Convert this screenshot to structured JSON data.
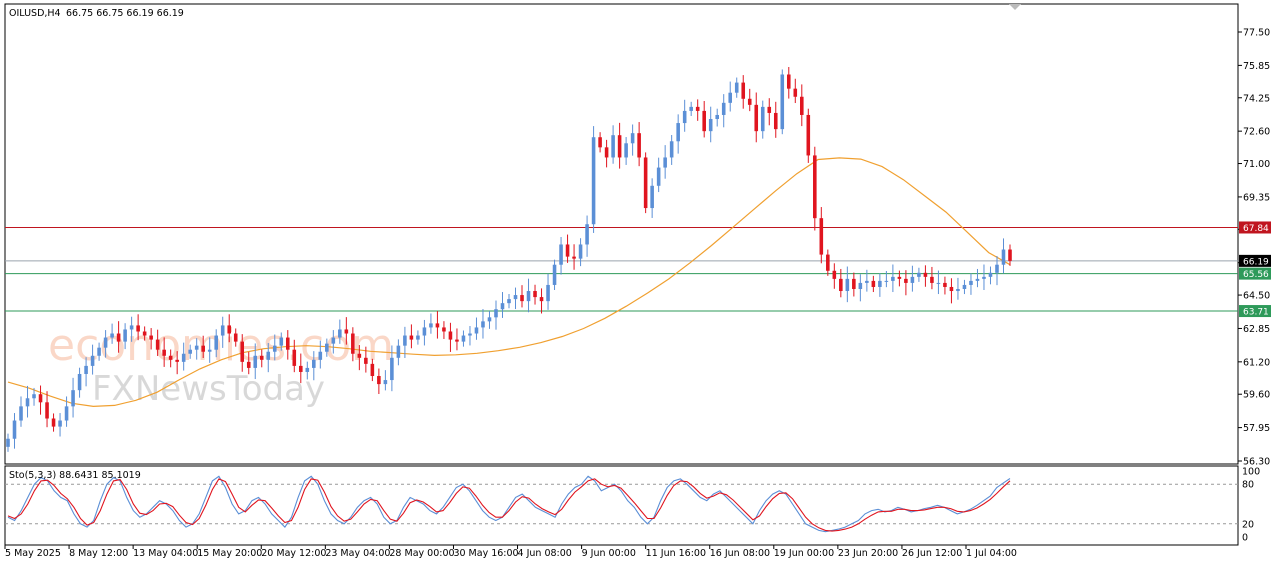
{
  "header": {
    "symbol": "OILUSD,H4",
    "ohlc": "66.75 66.75 66.19 66.19"
  },
  "watermark": {
    "brand": "economies.com",
    "sub": "FXNewsToday"
  },
  "colors": {
    "bull": "#5b8fd6",
    "bear": "#e0151f",
    "ma": "#f0a030",
    "stoch_main": "#5b8fd6",
    "stoch_signal": "#e0151f",
    "resistance": "#c0151f",
    "support": "#2e9a5a",
    "price": "#9aa3ad"
  },
  "chart_data": [
    {
      "type": "candlestick",
      "title": "OILUSD,H4",
      "ylim": [
        56.3,
        78.0
      ],
      "y_ticks": [
        "77.50",
        "75.85",
        "74.25",
        "72.60",
        "71.00",
        "69.35",
        "67.75",
        "66.10",
        "64.50",
        "62.85",
        "61.20",
        "59.60",
        "57.95",
        "56.30"
      ],
      "x_ticks": [
        "5 May 2025",
        "8 May 12:00",
        "13 May 04:00",
        "15 May 20:00",
        "20 May 12:00",
        "23 May 04:00",
        "28 May 00:00",
        "30 May 16:00",
        "4 Jun 08:00",
        "9 Jun 00:00",
        "11 Jun 16:00",
        "16 Jun 08:00",
        "19 Jun 00:00",
        "23 Jun 20:00",
        "26 Jun 12:00",
        "1 Jul 04:00"
      ],
      "levels": [
        {
          "label": "67.84",
          "value": 67.84,
          "kind": "resistance"
        },
        {
          "label": "66.19",
          "value": 66.19,
          "kind": "price"
        },
        {
          "label": "65.56",
          "value": 65.56,
          "kind": "support"
        },
        {
          "label": "63.71",
          "value": 63.71,
          "kind": "support"
        }
      ],
      "close": [
        57.4,
        58.3,
        59.0,
        59.4,
        59.6,
        59.2,
        58.4,
        58.0,
        58.3,
        59.0,
        59.8,
        60.6,
        61.0,
        61.5,
        61.9,
        62.4,
        62.6,
        62.2,
        62.8,
        63.0,
        62.7,
        62.5,
        62.3,
        61.8,
        61.5,
        61.3,
        61.2,
        61.6,
        61.8,
        62.0,
        61.7,
        61.8,
        62.5,
        63.0,
        62.6,
        62.2,
        61.2,
        60.9,
        61.5,
        61.3,
        61.7,
        62.0,
        62.4,
        61.8,
        61.0,
        60.7,
        60.9,
        61.3,
        61.7,
        62.1,
        62.4,
        62.8,
        62.6,
        61.6,
        61.4,
        61.1,
        60.5,
        60.1,
        60.3,
        61.4,
        62.0,
        62.5,
        62.3,
        62.5,
        62.9,
        63.1,
        62.9,
        62.7,
        62.3,
        62.2,
        62.5,
        62.6,
        62.9,
        63.2,
        63.4,
        63.8,
        64.1,
        64.3,
        64.5,
        64.2,
        64.7,
        64.4,
        64.2,
        65.0,
        66.0,
        67.0,
        66.4,
        66.3,
        67.0,
        68.0,
        72.3,
        71.8,
        71.3,
        72.4,
        71.3,
        72.0,
        72.5,
        71.3,
        68.8,
        69.9,
        70.8,
        71.3,
        72.1,
        73.0,
        73.6,
        73.8,
        73.6,
        72.6,
        73.2,
        73.4,
        74.0,
        74.5,
        75.0,
        74.2,
        73.9,
        72.6,
        73.8,
        73.5,
        72.7,
        75.4,
        74.7,
        74.3,
        73.4,
        71.4,
        68.3,
        66.5,
        65.7,
        65.3,
        64.7,
        65.3,
        64.8,
        65.1,
        65.2,
        64.9,
        65.2,
        65.2,
        65.4,
        65.3,
        65.1,
        65.4,
        65.6,
        65.4,
        65.1,
        65.1,
        64.9,
        64.7,
        64.8,
        65.0,
        65.2,
        65.3,
        65.4,
        65.6,
        66.0,
        66.75,
        66.19
      ],
      "ma": [
        60.2,
        59.9,
        59.5,
        59.15,
        59.0,
        59.05,
        59.3,
        59.7,
        60.3,
        60.85,
        61.3,
        61.65,
        61.85,
        61.95,
        62.0,
        61.95,
        61.85,
        61.72,
        61.65,
        61.58,
        61.52,
        61.55,
        61.62,
        61.75,
        61.92,
        62.15,
        62.45,
        62.85,
        63.35,
        63.95,
        64.6,
        65.3,
        66.1,
        66.95,
        67.85,
        68.75,
        69.65,
        70.5,
        71.2,
        71.28,
        71.22,
        70.85,
        70.2,
        69.4,
        68.6,
        67.6,
        66.6,
        66.0
      ],
      "stoch": {
        "label": "Sto(5,3,3) 88.6431 85.1019",
        "levels": [
          80,
          20
        ],
        "ylim": [
          0,
          100
        ],
        "y_ticks": [
          "100",
          "80",
          "20",
          "0"
        ],
        "main": [
          30,
          25,
          40,
          60,
          80,
          90,
          85,
          70,
          60,
          55,
          35,
          20,
          15,
          25,
          55,
          80,
          90,
          85,
          60,
          40,
          30,
          35,
          45,
          55,
          50,
          40,
          25,
          15,
          20,
          35,
          60,
          85,
          92,
          75,
          50,
          35,
          40,
          55,
          60,
          50,
          35,
          25,
          15,
          30,
          60,
          85,
          92,
          80,
          55,
          35,
          25,
          20,
          30,
          45,
          55,
          60,
          50,
          30,
          20,
          25,
          45,
          60,
          55,
          50,
          40,
          35,
          45,
          60,
          75,
          80,
          70,
          55,
          40,
          30,
          25,
          30,
          45,
          60,
          65,
          55,
          45,
          40,
          35,
          30,
          50,
          65,
          75,
          80,
          92,
          85,
          70,
          75,
          80,
          70,
          55,
          45,
          30,
          20,
          30,
          55,
          75,
          85,
          88,
          80,
          70,
          60,
          55,
          65,
          70,
          60,
          50,
          40,
          30,
          20,
          40,
          55,
          65,
          70,
          65,
          50,
          35,
          20,
          15,
          10,
          8,
          10,
          12,
          15,
          20,
          25,
          35,
          40,
          42,
          38,
          40,
          45,
          42,
          38,
          40,
          43,
          45,
          48,
          45,
          40,
          35,
          38,
          42,
          48,
          55,
          62,
          75,
          82,
          88.6
        ],
        "signal": [
          32,
          28,
          35,
          50,
          70,
          85,
          86,
          78,
          66,
          58,
          45,
          28,
          18,
          22,
          40,
          65,
          85,
          87,
          72,
          50,
          36,
          34,
          40,
          50,
          51,
          46,
          33,
          22,
          19,
          28,
          48,
          72,
          88,
          84,
          65,
          45,
          38,
          48,
          56,
          55,
          44,
          32,
          22,
          25,
          45,
          72,
          88,
          86,
          68,
          46,
          32,
          24,
          27,
          38,
          50,
          57,
          55,
          40,
          27,
          24,
          36,
          52,
          56,
          53,
          46,
          38,
          40,
          52,
          66,
          76,
          74,
          62,
          48,
          37,
          30,
          30,
          40,
          53,
          61,
          59,
          50,
          43,
          38,
          34,
          42,
          56,
          68,
          76,
          85,
          88,
          80,
          76,
          78,
          74,
          63,
          52,
          40,
          28,
          28,
          44,
          63,
          78,
          85,
          84,
          76,
          66,
          59,
          62,
          67,
          64,
          56,
          46,
          36,
          26,
          32,
          46,
          58,
          66,
          67,
          58,
          44,
          30,
          20,
          14,
          10,
          9,
          10,
          12,
          15,
          20,
          27,
          33,
          38,
          39,
          39,
          42,
          42,
          40,
          40,
          41,
          43,
          45,
          45,
          43,
          39,
          38,
          40,
          44,
          50,
          57,
          66,
          76,
          85.1
        ]
      }
    }
  ]
}
